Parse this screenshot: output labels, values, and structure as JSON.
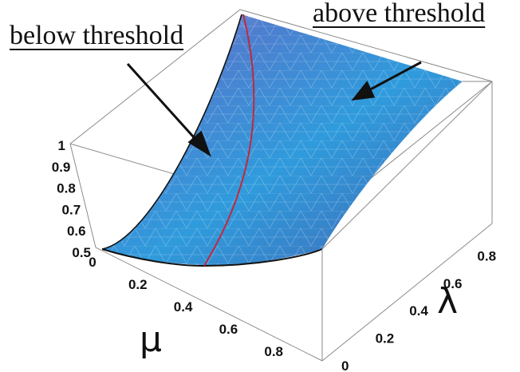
{
  "chart_data": {
    "type": "surface",
    "annotations": [
      "below threshold",
      "above threshold"
    ],
    "xlabel": "μ",
    "ylabel": "λ",
    "z_ticks": [
      "0.5",
      "0.6",
      "0.7",
      "0.8",
      "0.9",
      "1"
    ],
    "x_ticks": [
      "0",
      "0.2",
      "0.4",
      "0.6",
      "0.8"
    ],
    "y_ticks": [
      "0",
      "0.2",
      "0.4",
      "0.6",
      "0.8"
    ],
    "xlim": [
      0,
      1
    ],
    "ylim": [
      0,
      1
    ],
    "zlim": [
      0.5,
      1
    ],
    "surface_corners": [
      {
        "mu": 0,
        "lambda": 0,
        "z": 0.52
      },
      {
        "mu": 1,
        "lambda": 0,
        "z": 0.5
      },
      {
        "mu": 0,
        "lambda": 1,
        "z": 1
      },
      {
        "mu": 1,
        "lambda": 1,
        "z": 0.87
      }
    ],
    "threshold_curve_color": "#c0283c",
    "surface_colors": [
      "#9b8fd4",
      "#3aa0e0",
      "#2a5aa8"
    ]
  }
}
